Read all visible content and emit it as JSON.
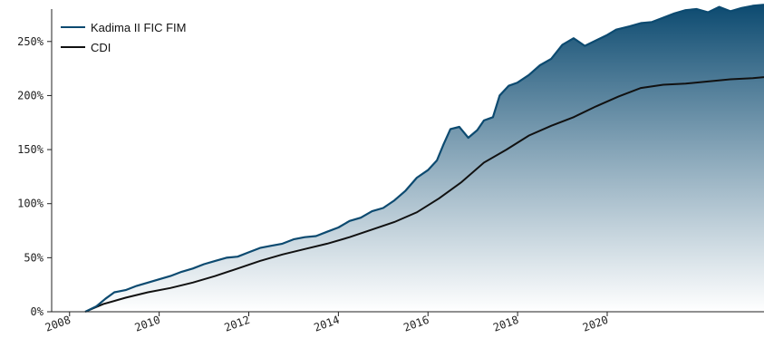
{
  "chart_data": {
    "type": "area",
    "title": "",
    "xlabel": "",
    "ylabel": "",
    "xlim": [
      2007.6,
      2023.5
    ],
    "ylim": [
      0,
      280
    ],
    "x_ticks": [
      2008,
      2010,
      2012,
      2014,
      2016,
      2018,
      2020
    ],
    "x_tick_labels": [
      "2008",
      "2010",
      "2012",
      "2014",
      "2016",
      "2018",
      "2020"
    ],
    "y_ticks": [
      0,
      50,
      100,
      150,
      200,
      250
    ],
    "y_tick_labels": [
      "0%",
      "50%",
      "100%",
      "150%",
      "200%",
      "250%"
    ],
    "grid": false,
    "legend_position": "top-left",
    "colors": {
      "fund": "#0c4a70",
      "cdi": "#111111",
      "fill_top": "#0c4a70",
      "fill_bottom": "#ffffff"
    },
    "series": [
      {
        "name": "Kadima II FIC FIM",
        "x": [
          2008.35,
          2008.6,
          2008.8,
          2009.0,
          2009.25,
          2009.5,
          2009.75,
          2010.0,
          2010.25,
          2010.5,
          2010.75,
          2011.0,
          2011.25,
          2011.5,
          2011.75,
          2012.0,
          2012.25,
          2012.5,
          2012.75,
          2013.0,
          2013.25,
          2013.5,
          2013.75,
          2014.0,
          2014.25,
          2014.5,
          2014.75,
          2015.0,
          2015.25,
          2015.5,
          2015.75,
          2016.0,
          2016.2,
          2016.35,
          2016.5,
          2016.7,
          2016.9,
          2017.1,
          2017.25,
          2017.45,
          2017.6,
          2017.8,
          2018.0,
          2018.25,
          2018.5,
          2018.75,
          2019.0,
          2019.25,
          2019.5,
          2019.75,
          2020.0,
          2020.2,
          2020.5,
          2020.75,
          2021.0,
          2021.25,
          2021.5,
          2021.75,
          2022.0,
          2022.25,
          2022.5,
          2022.75,
          2023.0,
          2023.25,
          2023.5
        ],
        "values": [
          0,
          5,
          12,
          18,
          20,
          24,
          27,
          30,
          33,
          37,
          40,
          44,
          47,
          50,
          51,
          55,
          59,
          61,
          63,
          67,
          69,
          70,
          74,
          78,
          84,
          87,
          93,
          96,
          103,
          112,
          124,
          131,
          140,
          155,
          169,
          171,
          161,
          168,
          177,
          180,
          200,
          209,
          212,
          219,
          228,
          234,
          247,
          253,
          246,
          251,
          256,
          261,
          264,
          267,
          268,
          272,
          276,
          279,
          280,
          277,
          282,
          278,
          281,
          283,
          284
        ]
      },
      {
        "name": "CDI",
        "x": [
          2008.35,
          2008.75,
          2009.25,
          2009.75,
          2010.25,
          2010.75,
          2011.25,
          2011.75,
          2012.25,
          2012.75,
          2013.25,
          2013.75,
          2014.25,
          2014.75,
          2015.25,
          2015.75,
          2016.25,
          2016.75,
          2017.25,
          2017.75,
          2018.25,
          2018.75,
          2019.25,
          2019.75,
          2020.25,
          2020.75,
          2021.25,
          2021.75,
          2022.25,
          2022.75,
          2023.25,
          2023.5
        ],
        "values": [
          0,
          7,
          13,
          18,
          22,
          27,
          33,
          40,
          47,
          53,
          58,
          63,
          69,
          76,
          83,
          92,
          105,
          120,
          138,
          150,
          163,
          172,
          180,
          190,
          199,
          207,
          210,
          211,
          213,
          215,
          216,
          217
        ]
      }
    ]
  }
}
